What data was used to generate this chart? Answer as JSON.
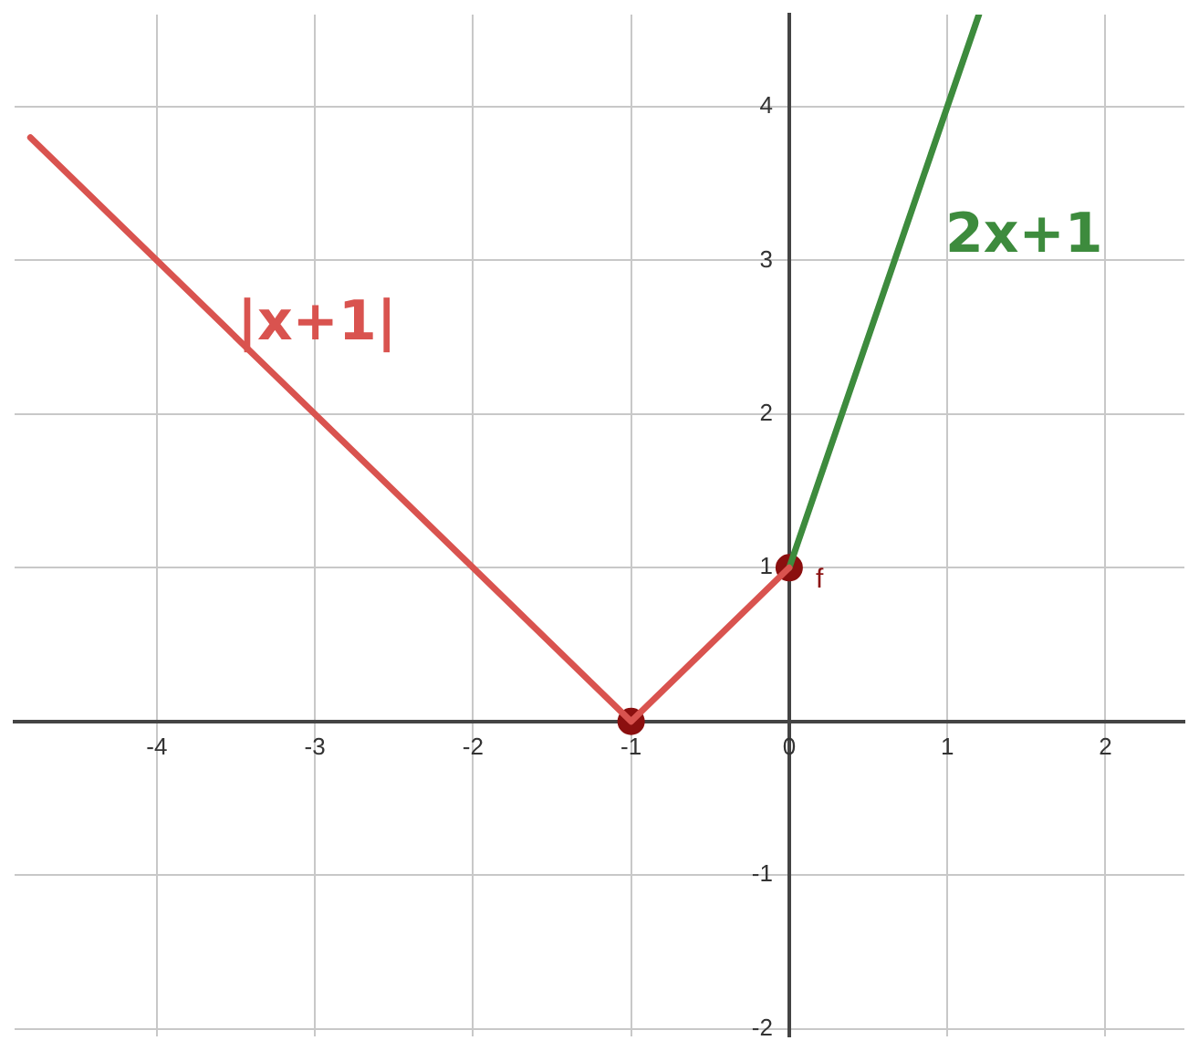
{
  "chart_data": {
    "type": "line",
    "xlim": [
      -4.9,
      2.5
    ],
    "ylim": [
      -2.05,
      4.6
    ],
    "xticks": [
      -4,
      -3,
      -2,
      -1,
      0,
      1,
      2
    ],
    "yticks": [
      -2,
      -1,
      {
        "value": 0,
        "label": null
      },
      1,
      2,
      3,
      4
    ],
    "grid": true,
    "legend": false,
    "line_style": "solid",
    "series": [
      {
        "type": "line",
        "color": "#d9534f",
        "x": [
          -4.8,
          -1,
          0
        ],
        "values": [
          3.8,
          0,
          1
        ],
        "marker": "none"
      },
      {
        "type": "line",
        "color": "#3d8b3d",
        "x": [
          0,
          1.2
        ],
        "values": [
          1,
          4.6
        ],
        "marker": "none"
      },
      {
        "type": "scatter",
        "color": "#8b0f0f",
        "x": [
          -1,
          0
        ],
        "values": [
          0,
          1
        ],
        "marker": "circle"
      }
    ],
    "annotations": [
      "|x+1|",
      "2x+1",
      "f"
    ]
  }
}
